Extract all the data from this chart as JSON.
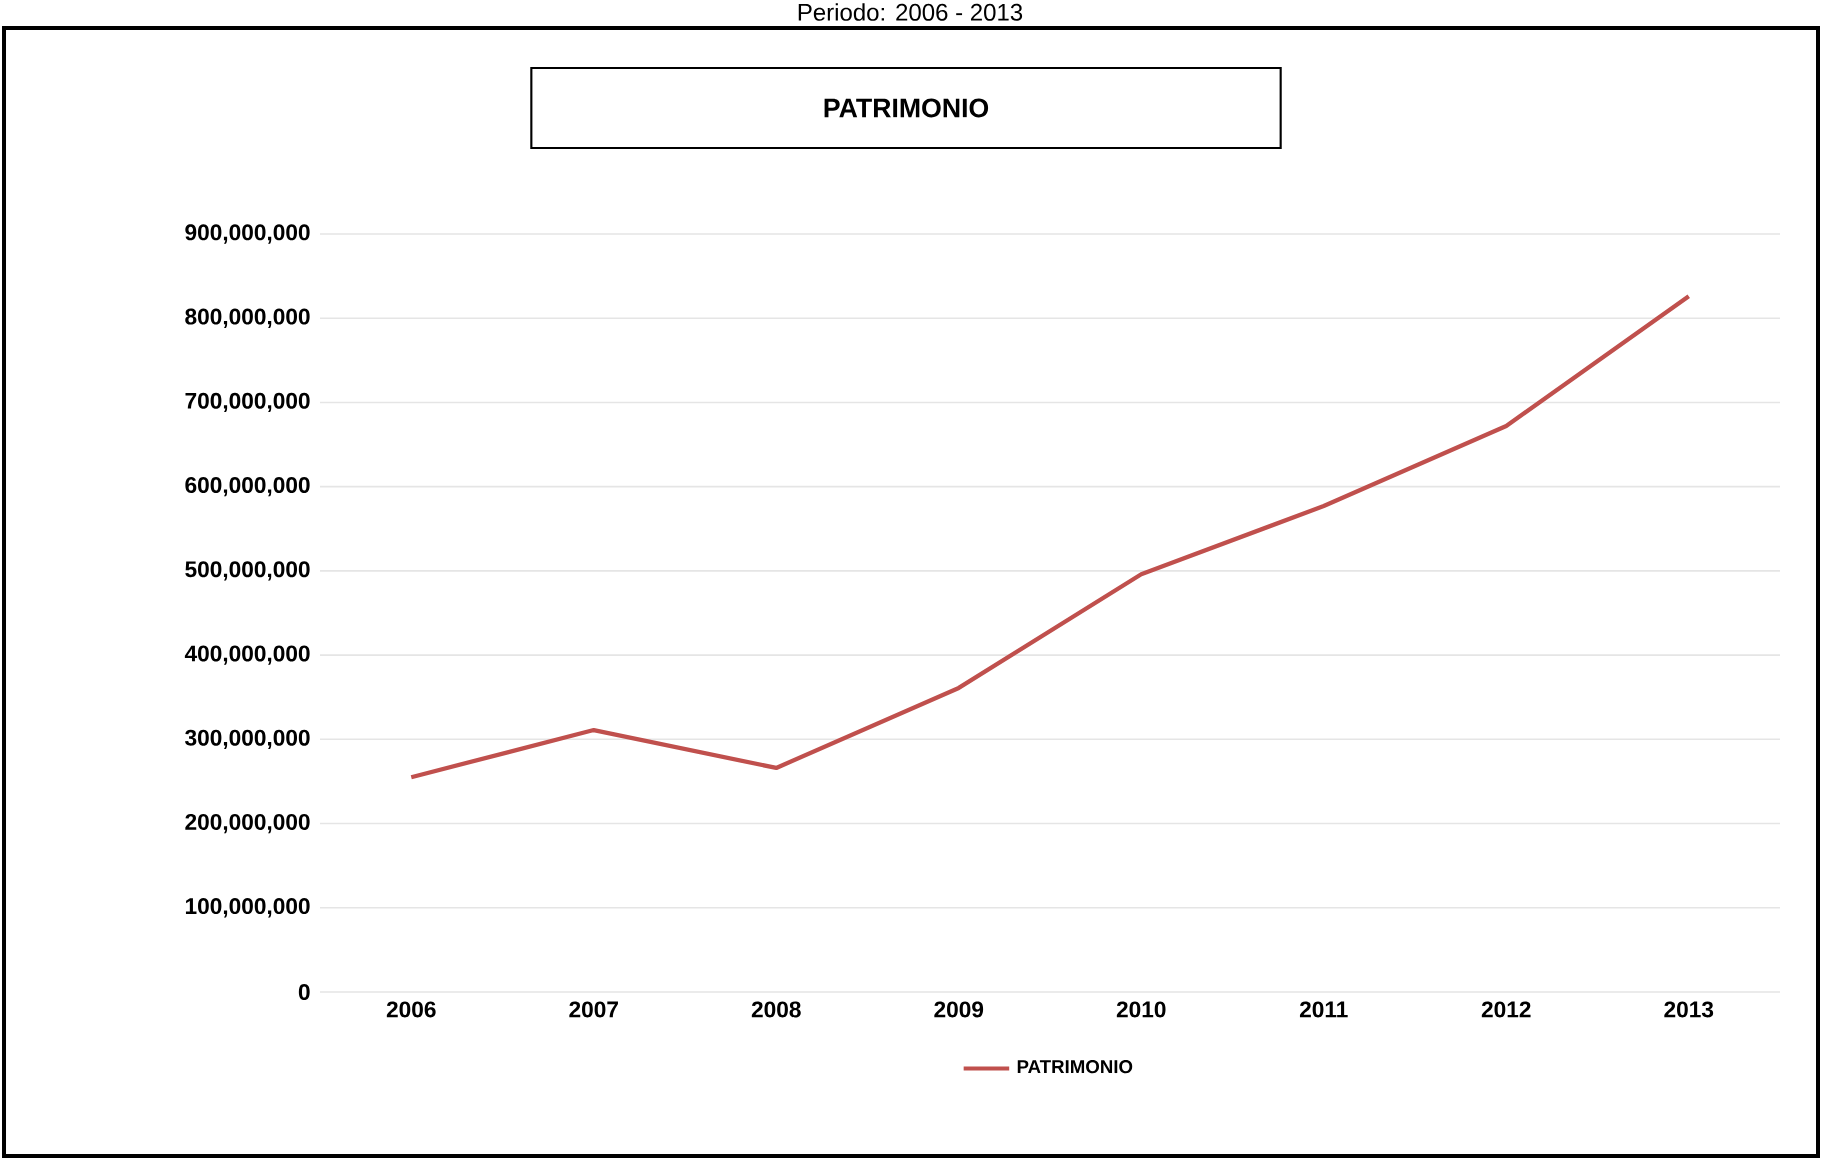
{
  "chart_data": {
    "type": "line",
    "title": "PATRIMONIO",
    "subtitle": "Periodo: 2006 - 2013",
    "categories": [
      "2006",
      "2007",
      "2008",
      "2009",
      "2010",
      "2011",
      "2012",
      "2013"
    ],
    "series": [
      {
        "name": "PATRIMONIO",
        "color": "#c0504d",
        "values": [
          255000000,
          311000000,
          266000000,
          361000000,
          496000000,
          577000000,
          672000000,
          826000000
        ]
      }
    ],
    "ylim": [
      0,
      900000000
    ],
    "yticks": [
      {
        "value": 0,
        "label": "0"
      },
      {
        "value": 100000000,
        "label": "100,000,000"
      },
      {
        "value": 200000000,
        "label": "200,000,000"
      },
      {
        "value": 300000000,
        "label": "300,000,000"
      },
      {
        "value": 400000000,
        "label": "400,000,000"
      },
      {
        "value": 500000000,
        "label": "500,000,000"
      },
      {
        "value": 600000000,
        "label": "600,000,000"
      },
      {
        "value": 700000000,
        "label": "700,000,000"
      },
      {
        "value": 800000000,
        "label": "800,000,000"
      },
      {
        "value": 900000000,
        "label": "900,000,000"
      }
    ],
    "grid": "y",
    "legend": "bottom",
    "marker": "none",
    "line_style": "solid"
  }
}
